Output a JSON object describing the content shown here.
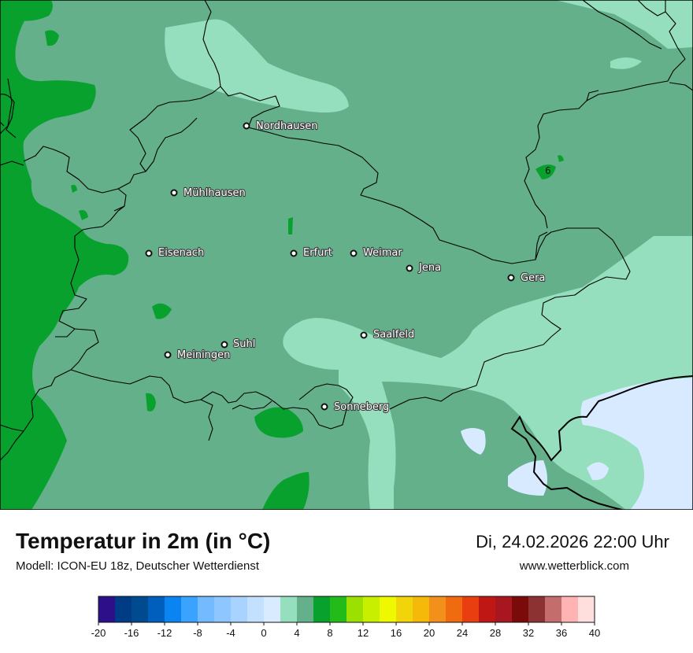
{
  "title": "Temperatur in 2m (in °C)",
  "model": "Modell: ICON-EU 18z, Deutscher Wetterdienst",
  "datetime": "Di, 24.02.2026 22:00 Uhr",
  "website": "www.wetterblick.com",
  "map": {
    "cities": [
      {
        "name": "Nordhausen"
      },
      {
        "name": "Mühlhausen"
      },
      {
        "name": "Eisenach"
      },
      {
        "name": "Erfurt"
      },
      {
        "name": "Weimar"
      },
      {
        "name": "Jena"
      },
      {
        "name": "Gera"
      },
      {
        "name": "Suhl"
      },
      {
        "name": "Meiningen"
      },
      {
        "name": "Saalfeld"
      },
      {
        "name": "Sonneberg"
      }
    ],
    "isoline_label": "6",
    "fill_colors": {
      "band_6_8": "#08a12e",
      "band_4_6": "#63b08a",
      "band_2_4": "#96dfbe",
      "band_0_2": "#d8eaff"
    }
  },
  "legend": {
    "ticks": [
      "-20",
      "-16",
      "-12",
      "-8",
      "-4",
      "0",
      "4",
      "8",
      "12",
      "16",
      "20",
      "24",
      "28",
      "32",
      "36",
      "40"
    ],
    "colors": [
      "#2e0f8a",
      "#003c86",
      "#004a8f",
      "#005fbd",
      "#0a84f0",
      "#3aa2ff",
      "#73baff",
      "#8ec6ff",
      "#a9d3ff",
      "#c3e0ff",
      "#d9ecff",
      "#96dfbe",
      "#63b08a",
      "#08a12e",
      "#22bb1a",
      "#9be000",
      "#c8ef00",
      "#eef800",
      "#f2d40a",
      "#f4b909",
      "#f2901b",
      "#f06a10",
      "#e93f10",
      "#bf1713",
      "#a8161f",
      "#7b0a0a",
      "#8c3232",
      "#c46d6d",
      "#ffb3b3",
      "#ffdede"
    ]
  }
}
